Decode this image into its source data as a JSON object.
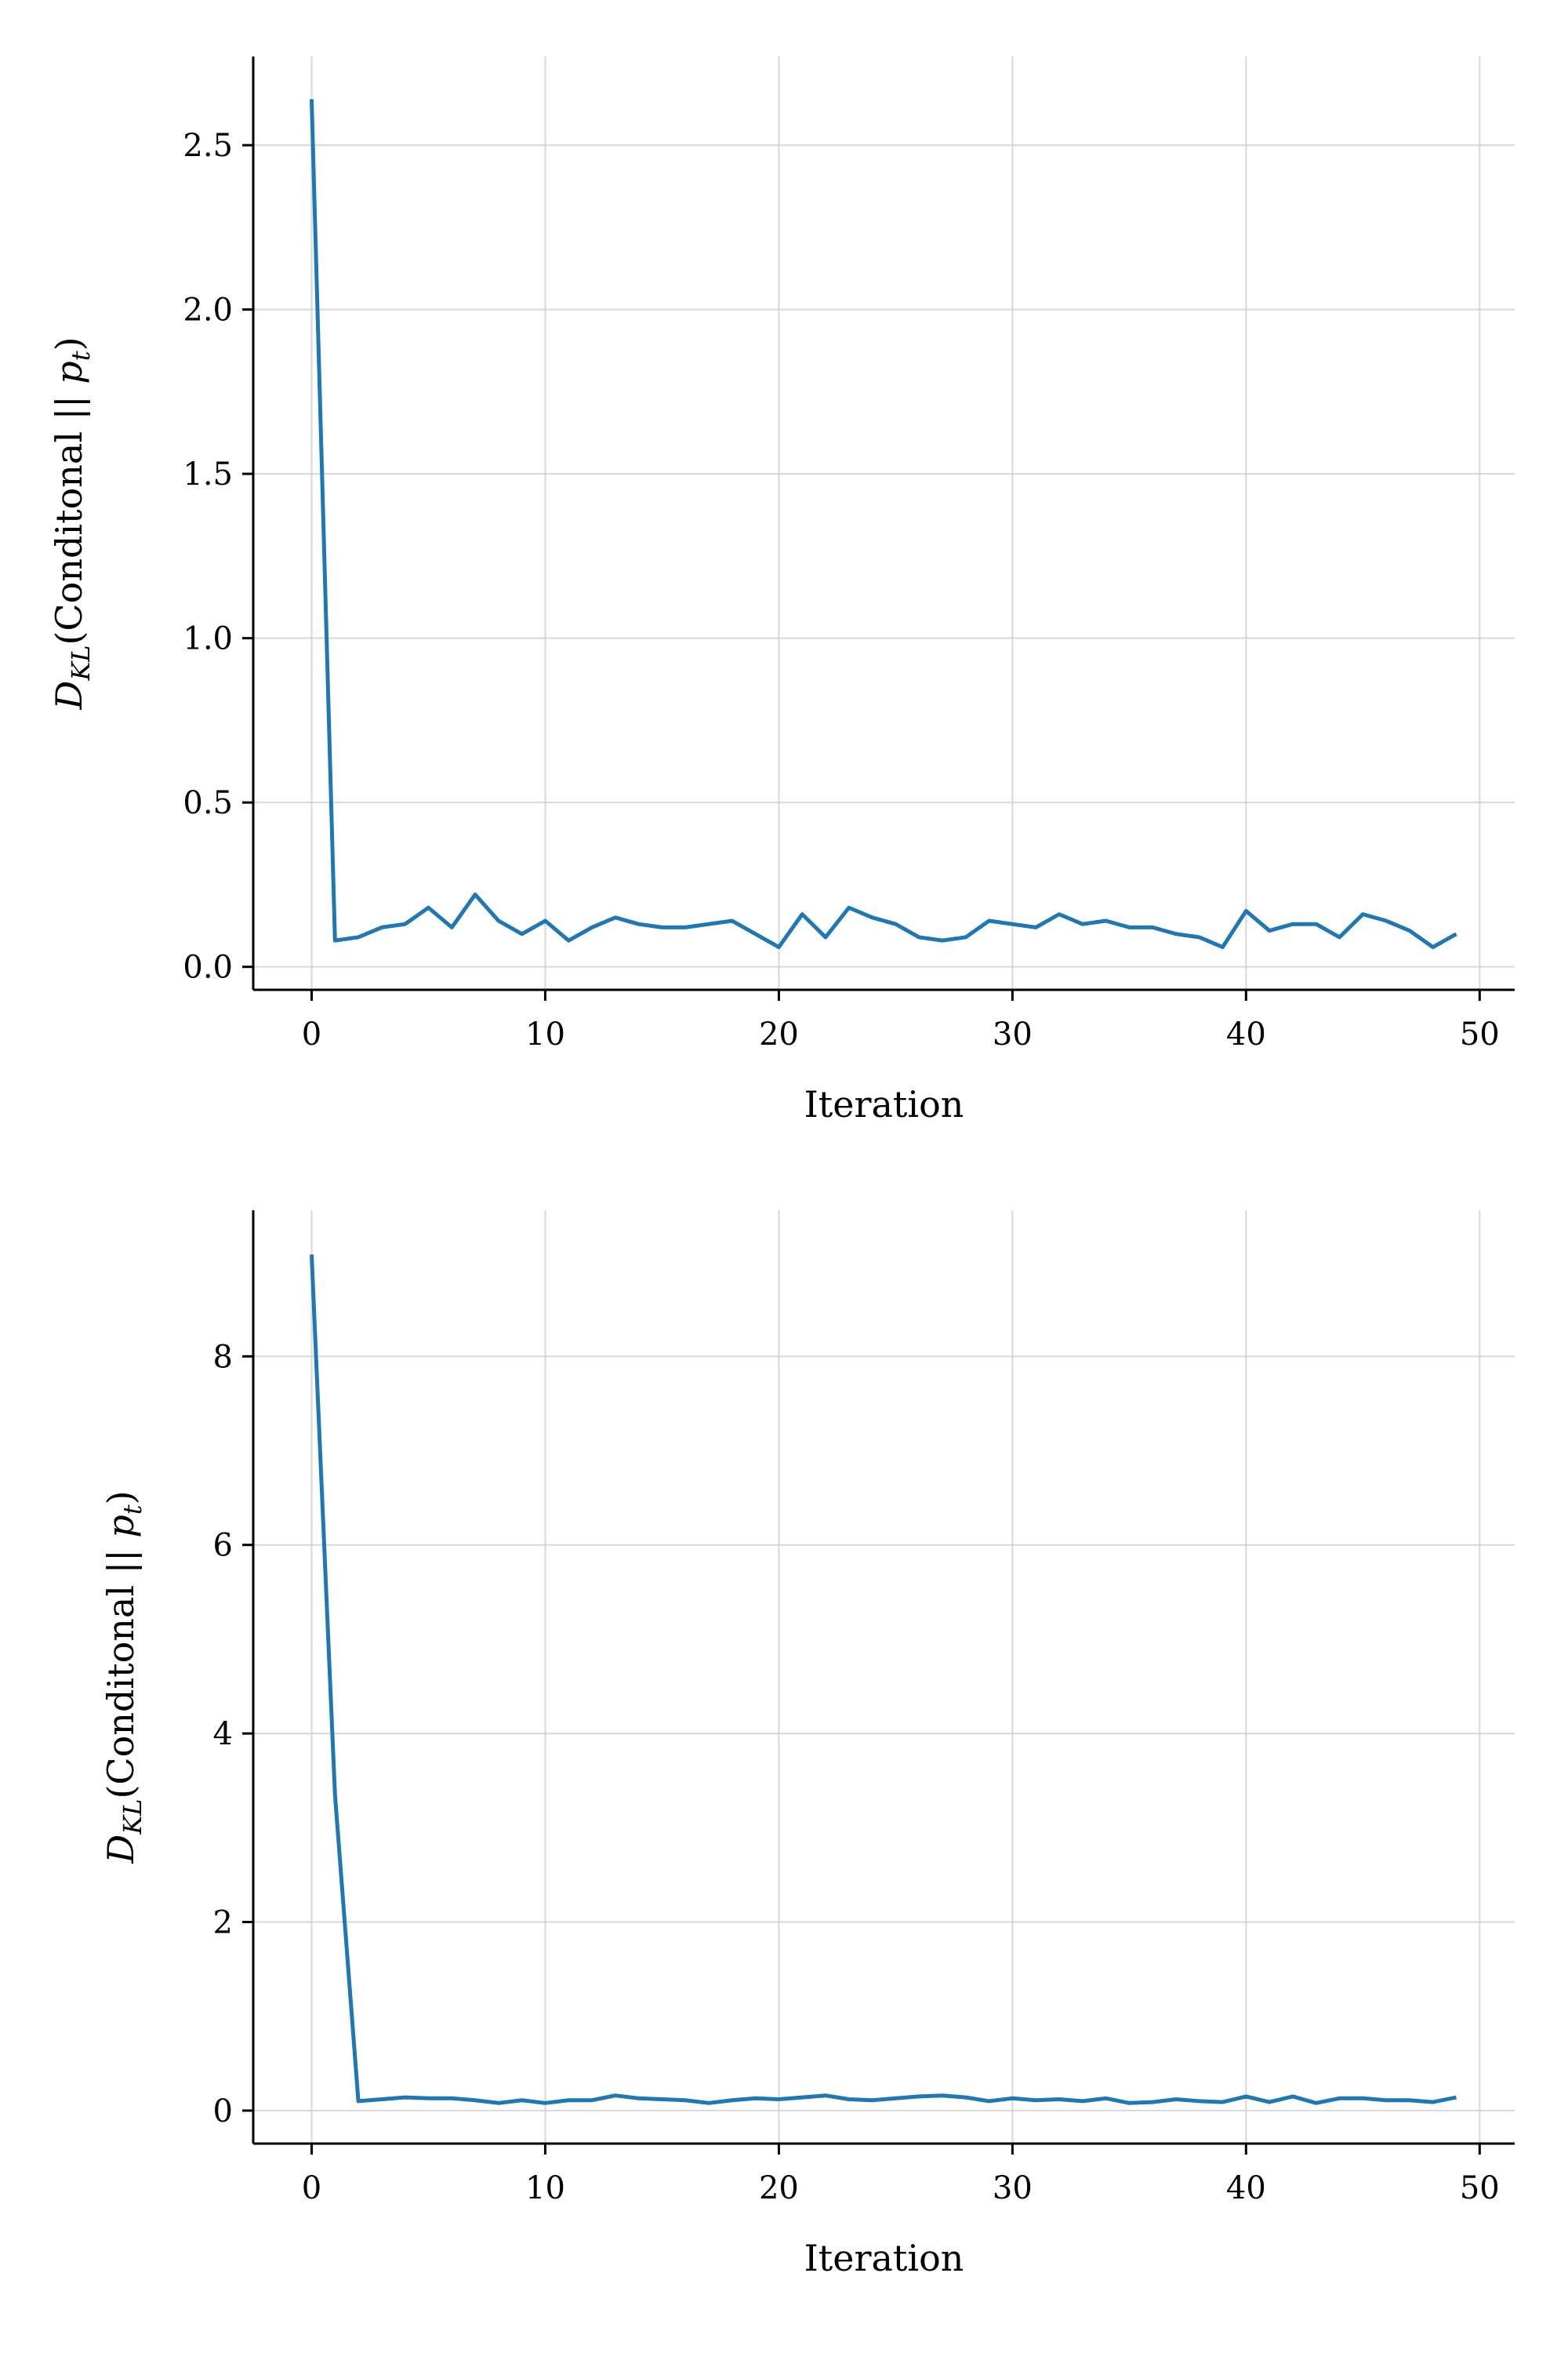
{
  "colors": {
    "line": "#1f77b4",
    "grid": "#cccccc",
    "axis": "#000000"
  },
  "chart_data": [
    {
      "type": "line",
      "xlabel": "Iteration",
      "ylabel": {
        "main": "D",
        "sub": "KL",
        "rest": "(Conditonal || p",
        "rest_sub": "t",
        "close": ")"
      },
      "xlim": [
        -2.5,
        51.5
      ],
      "ylim": [
        -0.07,
        2.77
      ],
      "xticks": [
        0,
        10,
        20,
        30,
        40,
        50
      ],
      "xtick_labels": [
        "0",
        "10",
        "20",
        "30",
        "40",
        "50"
      ],
      "yticks": [
        0.0,
        0.5,
        1.0,
        1.5,
        2.0,
        2.5
      ],
      "ytick_labels": [
        "0.0",
        "0.5",
        "1.0",
        "1.5",
        "2.0",
        "2.5"
      ],
      "grid": true,
      "series": [
        {
          "color": "#1f77b4",
          "x": [
            0,
            1,
            2,
            3,
            4,
            5,
            6,
            7,
            8,
            9,
            10,
            11,
            12,
            13,
            14,
            15,
            16,
            17,
            18,
            19,
            20,
            21,
            22,
            23,
            24,
            25,
            26,
            27,
            28,
            29,
            30,
            31,
            32,
            33,
            34,
            35,
            36,
            37,
            38,
            39,
            40,
            41,
            42,
            43,
            44,
            45,
            46,
            47,
            48,
            49
          ],
          "y": [
            2.64,
            0.08,
            0.09,
            0.12,
            0.13,
            0.18,
            0.12,
            0.22,
            0.14,
            0.1,
            0.14,
            0.08,
            0.12,
            0.15,
            0.13,
            0.12,
            0.12,
            0.13,
            0.14,
            0.1,
            0.06,
            0.16,
            0.09,
            0.18,
            0.15,
            0.13,
            0.09,
            0.08,
            0.09,
            0.14,
            0.13,
            0.12,
            0.16,
            0.13,
            0.14,
            0.12,
            0.12,
            0.1,
            0.09,
            0.06,
            0.17,
            0.11,
            0.13,
            0.13,
            0.09,
            0.16,
            0.14,
            0.11,
            0.06,
            0.1
          ]
        }
      ]
    },
    {
      "type": "line",
      "xlabel": "Iteration",
      "ylabel": {
        "main": "D",
        "sub": "KL",
        "rest": "(Conditonal || p",
        "rest_sub": "t",
        "close": ")"
      },
      "xlim": [
        -2.5,
        51.5
      ],
      "ylim": [
        -0.35,
        9.55
      ],
      "xticks": [
        0,
        10,
        20,
        30,
        40,
        50
      ],
      "xtick_labels": [
        "0",
        "10",
        "20",
        "30",
        "40",
        "50"
      ],
      "yticks": [
        0,
        2,
        4,
        6,
        8
      ],
      "ytick_labels": [
        "0",
        "2",
        "4",
        "6",
        "8"
      ],
      "grid": true,
      "series": [
        {
          "color": "#1f77b4",
          "x": [
            0,
            1,
            2,
            3,
            4,
            5,
            6,
            7,
            8,
            9,
            10,
            11,
            12,
            13,
            14,
            15,
            16,
            17,
            18,
            19,
            20,
            21,
            22,
            23,
            24,
            25,
            26,
            27,
            28,
            29,
            30,
            31,
            32,
            33,
            34,
            35,
            36,
            37,
            38,
            39,
            40,
            41,
            42,
            43,
            44,
            45,
            46,
            47,
            48,
            49
          ],
          "y": [
            9.08,
            3.35,
            0.1,
            0.12,
            0.14,
            0.13,
            0.13,
            0.11,
            0.08,
            0.11,
            0.08,
            0.11,
            0.11,
            0.16,
            0.13,
            0.12,
            0.11,
            0.08,
            0.11,
            0.13,
            0.12,
            0.14,
            0.16,
            0.12,
            0.11,
            0.13,
            0.15,
            0.16,
            0.14,
            0.1,
            0.13,
            0.11,
            0.12,
            0.1,
            0.13,
            0.08,
            0.09,
            0.12,
            0.1,
            0.09,
            0.15,
            0.09,
            0.15,
            0.08,
            0.13,
            0.13,
            0.11,
            0.11,
            0.09,
            0.14
          ]
        }
      ]
    }
  ]
}
